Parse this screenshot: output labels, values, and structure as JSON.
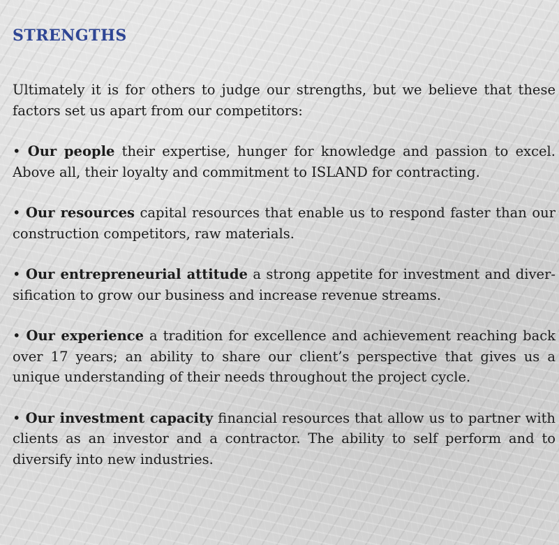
{
  "heading": "STRENGTHS",
  "intro": "Ultimately it is for others to judge our strengths, but we believe that these fac­tors set us apart from our competitors:",
  "bullet": "•",
  "items": [
    {
      "title": "Our people",
      "text": " their expertise, hunger for knowledge and passion to excel. Above all, their loyalty and commitment to ISLAND for contracting."
    },
    {
      "title": "Our resources",
      "text": " capital resources that enable us to respond faster than our construction competitors, raw materials."
    },
    {
      "title": "Our entrepreneurial attitude",
      "text": " a strong appetite for investment and diver­sification to grow our business and increase revenue streams."
    },
    {
      "title": "Our experience",
      "text": " a tradition for excellence and achievement reaching back over 17 years; an ability to share our client’s perspective that gives us a unique understanding of their needs throughout the project cycle."
    },
    {
      "title": "Our investment capacity",
      "text": " financial resources that allow us to partner with clients as an investor and a contractor. The ability to self perform and to diver­sify into new industries."
    }
  ],
  "colors": {
    "heading": "#2e4594",
    "body_text": "#1c1c1c",
    "background": "#c9c9c9"
  }
}
